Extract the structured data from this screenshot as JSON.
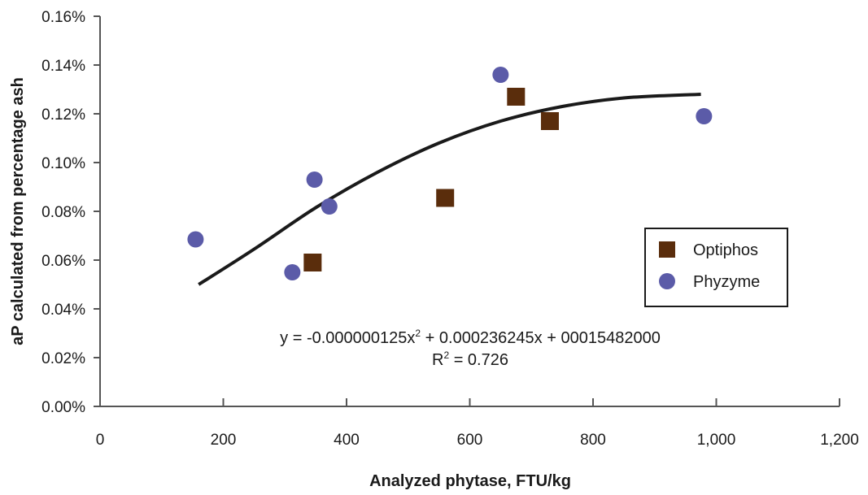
{
  "chart_data": {
    "type": "scatter",
    "title": "",
    "xlabel": "Analyzed phytase, FTU/kg",
    "ylabel": "aP calculated from percentage ash",
    "xlim": [
      0,
      1200
    ],
    "ylim": [
      0,
      0.16
    ],
    "x_ticks": [
      0,
      200,
      400,
      600,
      800,
      1000,
      1200
    ],
    "x_tick_labels": [
      "0",
      "200",
      "400",
      "600",
      "800",
      "1,000",
      "1,200"
    ],
    "y_ticks": [
      0,
      0.02,
      0.04,
      0.06,
      0.08,
      0.1,
      0.12,
      0.14,
      0.16
    ],
    "y_tick_labels": [
      "0.00%",
      "0.02%",
      "0.04%",
      "0.06%",
      "0.08%",
      "0.10%",
      "0.12%",
      "0.14%",
      "0.16%"
    ],
    "grid": false,
    "legend": "right",
    "series": [
      {
        "name": "Optiphos",
        "marker": "square",
        "color": "#5a2d0c",
        "points": [
          {
            "x": 345,
            "y": 0.059
          },
          {
            "x": 560,
            "y": 0.0855
          },
          {
            "x": 675,
            "y": 0.127
          },
          {
            "x": 730,
            "y": 0.117
          }
        ]
      },
      {
        "name": "Phyzyme",
        "marker": "circle",
        "color": "#5b5ba8",
        "points": [
          {
            "x": 155,
            "y": 0.0685
          },
          {
            "x": 312,
            "y": 0.055
          },
          {
            "x": 348,
            "y": 0.093
          },
          {
            "x": 372,
            "y": 0.082
          },
          {
            "x": 650,
            "y": 0.136
          },
          {
            "x": 980,
            "y": 0.119
          }
        ]
      }
    ],
    "trendline": {
      "type": "polynomial",
      "color": "#1a1a1a",
      "x_range": [
        160,
        975
      ],
      "points": [
        {
          "x": 160,
          "y": 0.05
        },
        {
          "x": 250,
          "y": 0.0645
        },
        {
          "x": 350,
          "y": 0.0815
        },
        {
          "x": 450,
          "y": 0.096
        },
        {
          "x": 550,
          "y": 0.108
        },
        {
          "x": 650,
          "y": 0.117
        },
        {
          "x": 750,
          "y": 0.123
        },
        {
          "x": 850,
          "y": 0.1265
        },
        {
          "x": 975,
          "y": 0.128
        }
      ]
    },
    "annotations": {
      "equation_prefix": "y = -0.000000125x",
      "equation_sup": "2",
      "equation_suffix": " + 0.000236245x + 00015482000",
      "r2_prefix": "R",
      "r2_sup": "2",
      "r2_suffix": " = 0.726"
    }
  }
}
